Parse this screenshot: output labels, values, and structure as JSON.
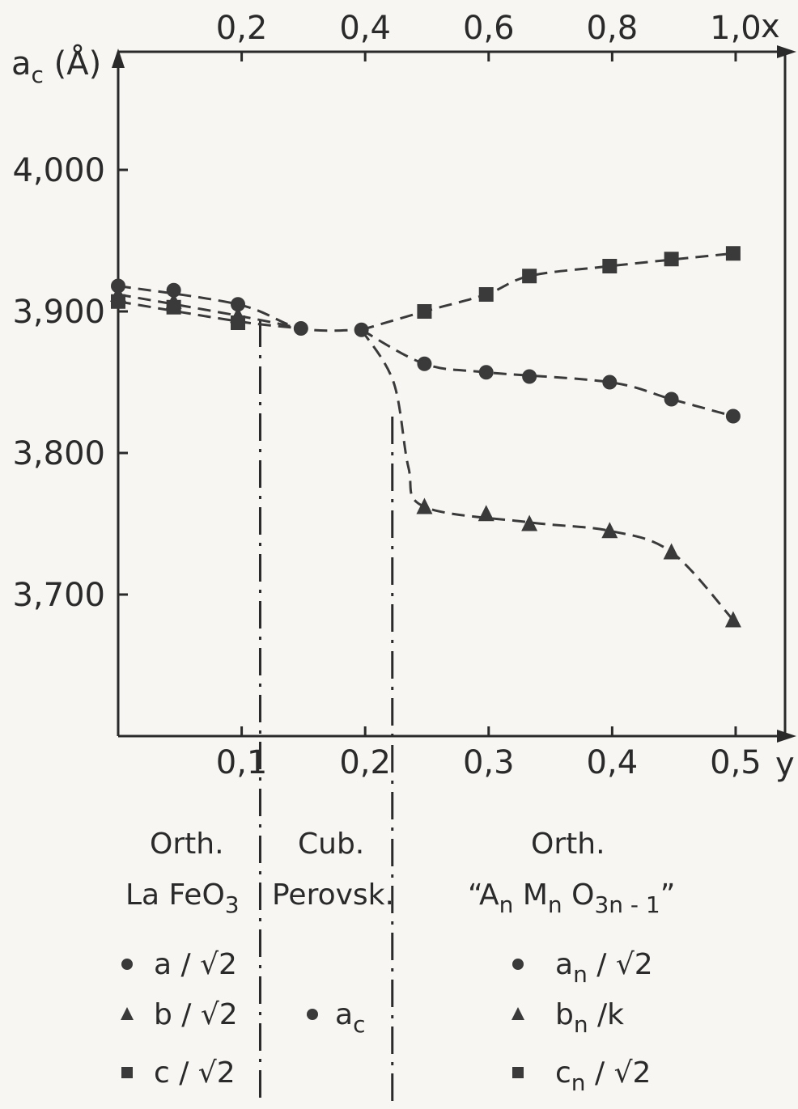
{
  "chart_data": {
    "type": "scatter",
    "y_axis_label": "a",
    "y_axis_label_sub": "c",
    "y_axis_label_unit": " (Å)",
    "bottom_axis_label": "y",
    "top_axis_label": "x",
    "y_ticks": [
      "4,000",
      "3,900",
      "3,800",
      "3,700"
    ],
    "y_tick_values": [
      4.0,
      3.9,
      3.8,
      3.7
    ],
    "bottom_ticks": [
      "0,1",
      "0,2",
      "0,3",
      "0,4",
      "0,5"
    ],
    "bottom_tick_values": [
      0.1,
      0.2,
      0.3,
      0.4,
      0.5
    ],
    "top_ticks": [
      "0,2",
      "0,4",
      "0,6",
      "0,8",
      "1,0"
    ],
    "top_tick_values": [
      0.2,
      0.4,
      0.6,
      0.8,
      1.0
    ],
    "y_range": [
      3.6,
      4.08
    ],
    "bottom_range": [
      0,
      0.54
    ],
    "phase_boundaries_y": [
      0.115,
      0.222
    ],
    "series": [
      {
        "marker": "circle",
        "points": [
          [
            0.0,
            3.918
          ],
          [
            0.045,
            3.915
          ],
          [
            0.097,
            3.905
          ],
          [
            0.148,
            3.888
          ],
          [
            0.197,
            3.887
          ],
          [
            0.248,
            3.863
          ],
          [
            0.298,
            3.857
          ],
          [
            0.333,
            3.854
          ],
          [
            0.398,
            3.85
          ],
          [
            0.448,
            3.838
          ],
          [
            0.498,
            3.826
          ]
        ]
      },
      {
        "marker": "triangle",
        "points": [
          [
            0.0,
            3.912
          ],
          [
            0.045,
            3.907
          ],
          [
            0.097,
            3.897
          ],
          [
            0.248,
            3.762
          ],
          [
            0.298,
            3.757
          ],
          [
            0.333,
            3.75
          ],
          [
            0.398,
            3.745
          ],
          [
            0.448,
            3.73
          ],
          [
            0.498,
            3.682
          ]
        ]
      },
      {
        "marker": "square",
        "points": [
          [
            0.0,
            3.907
          ],
          [
            0.045,
            3.903
          ],
          [
            0.097,
            3.892
          ],
          [
            0.248,
            3.9
          ],
          [
            0.298,
            3.912
          ],
          [
            0.333,
            3.925
          ],
          [
            0.398,
            3.932
          ],
          [
            0.448,
            3.937
          ],
          [
            0.498,
            3.941
          ]
        ]
      }
    ],
    "curves": [
      [
        [
          0.0,
          3.918
        ],
        [
          0.097,
          3.905
        ],
        [
          0.148,
          3.888
        ],
        [
          0.197,
          3.887
        ]
      ],
      [
        [
          0.0,
          3.912
        ],
        [
          0.097,
          3.897
        ],
        [
          0.148,
          3.888
        ]
      ],
      [
        [
          0.0,
          3.907
        ],
        [
          0.097,
          3.893
        ],
        [
          0.148,
          3.888
        ]
      ],
      [
        [
          0.197,
          3.887
        ],
        [
          0.248,
          3.863
        ],
        [
          0.298,
          3.857
        ],
        [
          0.398,
          3.85
        ],
        [
          0.448,
          3.838
        ],
        [
          0.498,
          3.826
        ]
      ],
      [
        [
          0.197,
          3.887
        ],
        [
          0.223,
          3.85
        ],
        [
          0.235,
          3.79
        ],
        [
          0.248,
          3.762
        ],
        [
          0.333,
          3.751
        ],
        [
          0.398,
          3.745
        ],
        [
          0.448,
          3.73
        ],
        [
          0.498,
          3.682
        ]
      ],
      [
        [
          0.197,
          3.887
        ],
        [
          0.248,
          3.9
        ],
        [
          0.298,
          3.912
        ],
        [
          0.333,
          3.925
        ],
        [
          0.398,
          3.932
        ],
        [
          0.498,
          3.941
        ]
      ]
    ]
  },
  "legend": {
    "orth_left": {
      "title1": "Orth.",
      "title2_a": "La FeO",
      "title2_sub": "3",
      "items": [
        {
          "marker": "circle",
          "label": "a / √2"
        },
        {
          "marker": "triangle",
          "label": "b / √2"
        },
        {
          "marker": "square",
          "label": "c / √2"
        }
      ]
    },
    "cubic": {
      "title1": "Cub.",
      "title2": "Perovsk.",
      "item_marker": "circle",
      "item_label": "a",
      "item_sub": "c"
    },
    "orth_right": {
      "title1": "Orth.",
      "title2_open": "“A",
      "title2_sub1": "n",
      "title2_mid": " M",
      "title2_sub2": "n",
      "title2_o": " O",
      "title2_sub3": "3n - 1",
      "title2_close": "”",
      "items": [
        {
          "marker": "circle",
          "label": "a",
          "sub": "n",
          "tail": " / √2"
        },
        {
          "marker": "triangle",
          "label": "b",
          "sub": "n",
          "tail": " /k"
        },
        {
          "marker": "square",
          "label": "c",
          "sub": "n",
          "tail": " / √2"
        }
      ]
    }
  }
}
